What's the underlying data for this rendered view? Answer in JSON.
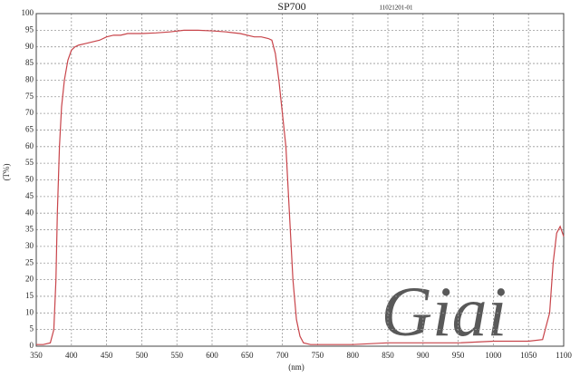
{
  "chart_data": {
    "type": "line",
    "title": "SP700",
    "subtitle": "11021201-01",
    "x_label": "(nm)",
    "y_label": "(T%)",
    "watermark": "Giai",
    "x": [
      350,
      360,
      370,
      375,
      378,
      380,
      383,
      386,
      390,
      395,
      400,
      405,
      410,
      420,
      430,
      440,
      450,
      460,
      470,
      480,
      500,
      520,
      540,
      560,
      580,
      600,
      620,
      640,
      660,
      670,
      680,
      685,
      690,
      695,
      700,
      705,
      710,
      715,
      720,
      725,
      730,
      740,
      750,
      800,
      850,
      900,
      950,
      1000,
      1050,
      1070,
      1080,
      1085,
      1090,
      1095,
      1100
    ],
    "series": [
      {
        "name": "SP700",
        "color": "#c8444a",
        "values": [
          0.5,
          0.5,
          1,
          5,
          20,
          40,
          60,
          72,
          80,
          86,
          89,
          90,
          90.5,
          91,
          91.5,
          92,
          93,
          93.5,
          93.5,
          94,
          94,
          94.2,
          94.5,
          95,
          95,
          94.8,
          94.5,
          94,
          93,
          93,
          92.5,
          92,
          88,
          80,
          70,
          60,
          40,
          20,
          8,
          3,
          1,
          0.5,
          0.5,
          0.5,
          1,
          1,
          1,
          1.5,
          1.5,
          2,
          10,
          25,
          34,
          36,
          33
        ]
      }
    ],
    "xlim": [
      350,
      1100
    ],
    "ylim": [
      0,
      100
    ],
    "xticks": [
      350,
      400,
      450,
      500,
      550,
      600,
      650,
      700,
      750,
      800,
      850,
      900,
      950,
      1000,
      1050,
      1100
    ],
    "yticks": [
      0,
      5,
      10,
      15,
      20,
      25,
      30,
      35,
      40,
      45,
      50,
      55,
      60,
      65,
      70,
      75,
      80,
      85,
      90,
      95,
      100
    ],
    "grid": true
  }
}
